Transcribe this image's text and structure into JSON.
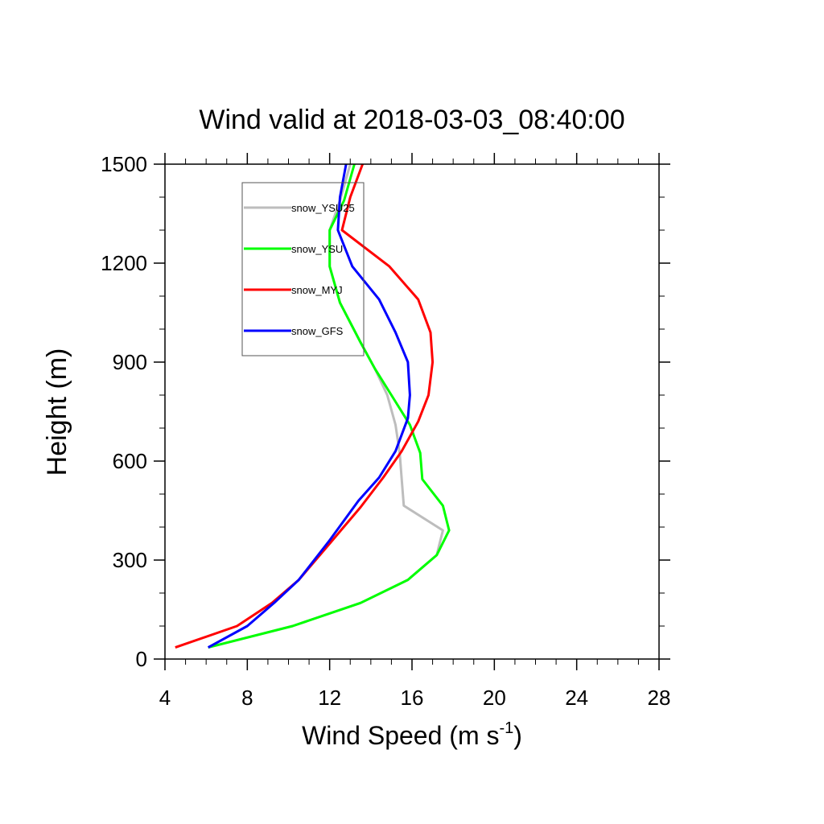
{
  "chart_data": {
    "type": "line",
    "title": "Wind valid at 2018-03-03_08:40:00",
    "xlabel": "Wind Speed (m s",
    "xlabel_sup": "-1",
    "xlabel_close": ")",
    "ylabel": "Height (m)",
    "xlim": [
      4,
      28
    ],
    "ylim": [
      0,
      1500
    ],
    "x_ticks": [
      4,
      8,
      12,
      16,
      20,
      24,
      28
    ],
    "y_ticks": [
      0,
      300,
      600,
      900,
      1200,
      1500
    ],
    "grid": false,
    "legend_position": "upper-left",
    "series": [
      {
        "name": "snow_YSU25",
        "color": "#bdbdbd",
        "points": [
          [
            6.1,
            35
          ],
          [
            10.2,
            100
          ],
          [
            13.5,
            170
          ],
          [
            15.8,
            240
          ],
          [
            17.2,
            315
          ],
          [
            17.5,
            390
          ],
          [
            15.6,
            465
          ],
          [
            15.5,
            545
          ],
          [
            15.4,
            625
          ],
          [
            15.2,
            710
          ],
          [
            14.8,
            800
          ],
          [
            14.2,
            880
          ],
          [
            13.5,
            960
          ],
          [
            12.5,
            1080
          ],
          [
            12,
            1190
          ],
          [
            12,
            1300
          ],
          [
            12.5,
            1390
          ],
          [
            13,
            1500
          ]
        ]
      },
      {
        "name": "snow_YSU",
        "color": "#00ff00",
        "points": [
          [
            6.1,
            35
          ],
          [
            10.2,
            100
          ],
          [
            13.5,
            170
          ],
          [
            15.8,
            240
          ],
          [
            17.2,
            315
          ],
          [
            17.8,
            390
          ],
          [
            17.5,
            465
          ],
          [
            16.5,
            545
          ],
          [
            16.4,
            625
          ],
          [
            15.9,
            710
          ],
          [
            15.0,
            800
          ],
          [
            14.2,
            880
          ],
          [
            13.5,
            960
          ],
          [
            12.5,
            1080
          ],
          [
            12,
            1190
          ],
          [
            12,
            1300
          ],
          [
            12.7,
            1390
          ],
          [
            13.2,
            1500
          ]
        ]
      },
      {
        "name": "snow_MYJ",
        "color": "#ff0000",
        "points": [
          [
            4.5,
            35
          ],
          [
            7.5,
            100
          ],
          [
            9.2,
            170
          ],
          [
            10.5,
            240
          ],
          [
            12.0,
            350
          ],
          [
            13.5,
            460
          ],
          [
            14.6,
            550
          ],
          [
            15.5,
            630
          ],
          [
            16.3,
            720
          ],
          [
            16.8,
            800
          ],
          [
            17.0,
            900
          ],
          [
            16.9,
            990
          ],
          [
            16.3,
            1090
          ],
          [
            14.9,
            1190
          ],
          [
            12.6,
            1300
          ],
          [
            13,
            1400
          ],
          [
            13.6,
            1500
          ]
        ]
      },
      {
        "name": "snow_GFS",
        "color": "#0000ff",
        "points": [
          [
            6.1,
            35
          ],
          [
            8.0,
            100
          ],
          [
            9.3,
            170
          ],
          [
            10.5,
            240
          ],
          [
            12,
            360
          ],
          [
            13.4,
            480
          ],
          [
            14.4,
            550
          ],
          [
            15.2,
            630
          ],
          [
            15.8,
            730
          ],
          [
            15.9,
            800
          ],
          [
            15.8,
            900
          ],
          [
            15.2,
            990
          ],
          [
            14.4,
            1090
          ],
          [
            13.1,
            1190
          ],
          [
            12.4,
            1300
          ],
          [
            12.5,
            1400
          ],
          [
            12.8,
            1500
          ]
        ]
      }
    ]
  }
}
